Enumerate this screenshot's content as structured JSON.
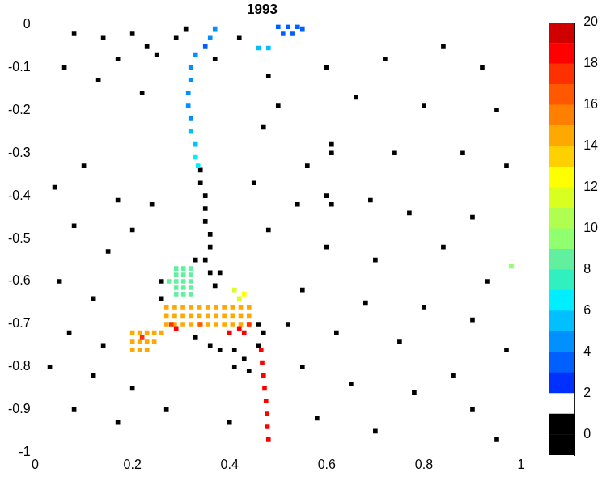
{
  "chart_data": {
    "type": "heatmap",
    "title": "1993",
    "xlim": [
      0,
      1
    ],
    "xticks": [
      0,
      0.2,
      0.4,
      0.6,
      0.8,
      1
    ],
    "ylim": [
      -1,
      0
    ],
    "yticks": [
      0,
      -0.1,
      -0.2,
      -0.3,
      -0.4,
      -0.5,
      -0.6,
      -0.7,
      -0.8,
      -0.9,
      -1
    ],
    "grid": false,
    "colorbar": {
      "range": [
        -1,
        20
      ],
      "ticks": [
        0,
        2,
        4,
        6,
        8,
        10,
        12,
        14,
        16,
        18,
        20
      ],
      "levels": [
        -1,
        0,
        1,
        2,
        3,
        4,
        5,
        6,
        7,
        8,
        9,
        10,
        11,
        12,
        13,
        14,
        15,
        16,
        17,
        18,
        19,
        20
      ],
      "colors": [
        "#000000",
        "#000000",
        "#ffffff",
        "#0030ff",
        "#0060ff",
        "#0090ff",
        "#00c0ff",
        "#00eeff",
        "#30f0c0",
        "#60f0a0",
        "#90ff70",
        "#b0ff50",
        "#d8ff20",
        "#ffff00",
        "#ffd000",
        "#ffa800",
        "#ff8000",
        "#ff5800",
        "#ff3000",
        "#ff0000",
        "#d00000"
      ]
    },
    "cells": [
      [
        0.08,
        -0.02,
        0
      ],
      [
        0.14,
        -0.03,
        0
      ],
      [
        0.2,
        -0.02,
        0
      ],
      [
        0.23,
        -0.05,
        0
      ],
      [
        0.29,
        -0.03,
        0
      ],
      [
        0.31,
        -0.01,
        0
      ],
      [
        0.25,
        -0.07,
        0
      ],
      [
        0.17,
        -0.08,
        0
      ],
      [
        0.42,
        -0.03,
        0
      ],
      [
        0.06,
        -0.1,
        0
      ],
      [
        0.13,
        -0.13,
        0
      ],
      [
        0.22,
        -0.16,
        0
      ],
      [
        0.37,
        -0.08,
        0
      ],
      [
        0.48,
        -0.12,
        0
      ],
      [
        0.5,
        -0.19,
        0
      ],
      [
        0.47,
        -0.24,
        0
      ],
      [
        0.6,
        -0.1,
        0
      ],
      [
        0.72,
        -0.08,
        0
      ],
      [
        0.84,
        -0.05,
        0
      ],
      [
        0.92,
        -0.1,
        0
      ],
      [
        0.66,
        -0.17,
        0
      ],
      [
        0.8,
        -0.19,
        0
      ],
      [
        0.95,
        -0.2,
        0
      ],
      [
        0.61,
        -0.28,
        0
      ],
      [
        0.61,
        -0.3,
        0
      ],
      [
        0.56,
        -0.33,
        0
      ],
      [
        0.74,
        -0.3,
        0
      ],
      [
        0.88,
        -0.3,
        0
      ],
      [
        0.97,
        -0.33,
        0
      ],
      [
        0.1,
        -0.33,
        0
      ],
      [
        0.04,
        -0.38,
        0
      ],
      [
        0.17,
        -0.41,
        0
      ],
      [
        0.24,
        -0.42,
        0
      ],
      [
        0.45,
        -0.37,
        0
      ],
      [
        0.54,
        -0.42,
        0
      ],
      [
        0.69,
        -0.41,
        0
      ],
      [
        0.77,
        -0.44,
        0
      ],
      [
        0.9,
        -0.45,
        0
      ],
      [
        0.08,
        -0.47,
        0
      ],
      [
        0.15,
        -0.53,
        0
      ],
      [
        0.2,
        -0.48,
        0
      ],
      [
        0.48,
        -0.48,
        0
      ],
      [
        0.6,
        -0.52,
        0
      ],
      [
        0.7,
        -0.55,
        0
      ],
      [
        0.84,
        -0.52,
        0
      ],
      [
        0.93,
        -0.6,
        0
      ],
      [
        0.05,
        -0.6,
        0
      ],
      [
        0.12,
        -0.64,
        0
      ],
      [
        0.55,
        -0.62,
        0
      ],
      [
        0.68,
        -0.65,
        0
      ],
      [
        0.8,
        -0.66,
        0
      ],
      [
        0.9,
        -0.69,
        0
      ],
      [
        0.07,
        -0.72,
        0
      ],
      [
        0.14,
        -0.75,
        0
      ],
      [
        0.52,
        -0.7,
        0
      ],
      [
        0.62,
        -0.72,
        0
      ],
      [
        0.75,
        -0.74,
        0
      ],
      [
        0.97,
        -0.76,
        0
      ],
      [
        0.03,
        -0.8,
        0
      ],
      [
        0.12,
        -0.82,
        0
      ],
      [
        0.2,
        -0.85,
        0
      ],
      [
        0.55,
        -0.8,
        0
      ],
      [
        0.65,
        -0.84,
        0
      ],
      [
        0.78,
        -0.86,
        0
      ],
      [
        0.86,
        -0.82,
        0
      ],
      [
        0.08,
        -0.9,
        0
      ],
      [
        0.17,
        -0.93,
        0
      ],
      [
        0.27,
        -0.9,
        0
      ],
      [
        0.58,
        -0.92,
        0
      ],
      [
        0.7,
        -0.95,
        0
      ],
      [
        0.9,
        -0.9,
        0
      ],
      [
        0.95,
        -0.97,
        0
      ],
      [
        0.4,
        -0.93,
        0
      ],
      [
        0.6,
        -0.4,
        0
      ],
      [
        0.61,
        -0.42,
        0
      ],
      [
        0.34,
        -0.34,
        0
      ],
      [
        0.34,
        -0.37,
        0
      ],
      [
        0.35,
        -0.4,
        0
      ],
      [
        0.35,
        -0.43,
        0
      ],
      [
        0.35,
        -0.46,
        0
      ],
      [
        0.36,
        -0.49,
        0
      ],
      [
        0.36,
        -0.52,
        0
      ],
      [
        0.35,
        -0.55,
        0
      ],
      [
        0.33,
        -0.55,
        0
      ],
      [
        0.36,
        -0.58,
        0
      ],
      [
        0.38,
        -0.58,
        0
      ],
      [
        0.37,
        -0.61,
        0
      ],
      [
        0.26,
        -0.6,
        0
      ],
      [
        0.26,
        -0.64,
        0
      ],
      [
        0.38,
        -0.76,
        0
      ],
      [
        0.41,
        -0.76,
        0
      ],
      [
        0.43,
        -0.78,
        0
      ],
      [
        0.41,
        -0.8,
        0
      ],
      [
        0.44,
        -0.81,
        0
      ],
      [
        0.46,
        -0.75,
        0
      ],
      [
        0.36,
        -0.75,
        0
      ],
      [
        0.33,
        -0.73,
        0
      ],
      [
        0.46,
        -0.7,
        0
      ],
      [
        0.47,
        -0.72,
        0
      ],
      [
        0.37,
        -0.01,
        4
      ],
      [
        0.36,
        -0.03,
        4
      ],
      [
        0.35,
        -0.05,
        3
      ],
      [
        0.33,
        -0.07,
        4
      ],
      [
        0.32,
        -0.1,
        4
      ],
      [
        0.32,
        -0.13,
        4
      ],
      [
        0.315,
        -0.16,
        4
      ],
      [
        0.315,
        -0.19,
        4
      ],
      [
        0.32,
        -0.22,
        4
      ],
      [
        0.32,
        -0.25,
        5
      ],
      [
        0.33,
        -0.28,
        5
      ],
      [
        0.33,
        -0.31,
        6
      ],
      [
        0.335,
        -0.33,
        6
      ],
      [
        0.5,
        -0.005,
        3
      ],
      [
        0.52,
        -0.005,
        3
      ],
      [
        0.54,
        -0.005,
        3
      ],
      [
        0.51,
        -0.02,
        3
      ],
      [
        0.53,
        -0.02,
        3
      ],
      [
        0.55,
        -0.01,
        3
      ],
      [
        0.46,
        -0.055,
        5
      ],
      [
        0.48,
        -0.055,
        5
      ],
      [
        0.29,
        -0.57,
        8
      ],
      [
        0.305,
        -0.57,
        8
      ],
      [
        0.32,
        -0.57,
        8
      ],
      [
        0.29,
        -0.585,
        8
      ],
      [
        0.305,
        -0.585,
        8
      ],
      [
        0.32,
        -0.585,
        8
      ],
      [
        0.29,
        -0.6,
        8
      ],
      [
        0.305,
        -0.6,
        8
      ],
      [
        0.32,
        -0.6,
        8
      ],
      [
        0.29,
        -0.615,
        8
      ],
      [
        0.305,
        -0.615,
        8
      ],
      [
        0.32,
        -0.615,
        8
      ],
      [
        0.29,
        -0.63,
        8
      ],
      [
        0.305,
        -0.63,
        8
      ],
      [
        0.32,
        -0.63,
        8
      ],
      [
        0.275,
        -0.6,
        8
      ],
      [
        0.41,
        -0.62,
        11
      ],
      [
        0.42,
        -0.64,
        11
      ],
      [
        0.43,
        -0.63,
        12
      ],
      [
        0.27,
        -0.66,
        14
      ],
      [
        0.287,
        -0.66,
        14
      ],
      [
        0.304,
        -0.66,
        14
      ],
      [
        0.321,
        -0.66,
        14
      ],
      [
        0.338,
        -0.66,
        14
      ],
      [
        0.355,
        -0.66,
        14
      ],
      [
        0.372,
        -0.66,
        14
      ],
      [
        0.389,
        -0.66,
        14
      ],
      [
        0.406,
        -0.66,
        14
      ],
      [
        0.423,
        -0.66,
        14
      ],
      [
        0.44,
        -0.66,
        14
      ],
      [
        0.27,
        -0.68,
        14
      ],
      [
        0.287,
        -0.68,
        14
      ],
      [
        0.304,
        -0.68,
        14
      ],
      [
        0.321,
        -0.68,
        14
      ],
      [
        0.338,
        -0.68,
        14
      ],
      [
        0.355,
        -0.68,
        14
      ],
      [
        0.372,
        -0.68,
        14
      ],
      [
        0.389,
        -0.68,
        14
      ],
      [
        0.406,
        -0.68,
        14
      ],
      [
        0.423,
        -0.68,
        14
      ],
      [
        0.44,
        -0.68,
        14
      ],
      [
        0.27,
        -0.7,
        14
      ],
      [
        0.287,
        -0.7,
        14
      ],
      [
        0.304,
        -0.7,
        14
      ],
      [
        0.321,
        -0.7,
        14
      ],
      [
        0.338,
        -0.7,
        14
      ],
      [
        0.355,
        -0.7,
        14
      ],
      [
        0.372,
        -0.7,
        14
      ],
      [
        0.389,
        -0.7,
        14
      ],
      [
        0.406,
        -0.7,
        14
      ],
      [
        0.423,
        -0.7,
        14
      ],
      [
        0.44,
        -0.7,
        14
      ],
      [
        0.2,
        -0.72,
        14
      ],
      [
        0.215,
        -0.72,
        14
      ],
      [
        0.23,
        -0.72,
        14
      ],
      [
        0.245,
        -0.72,
        14
      ],
      [
        0.26,
        -0.72,
        14
      ],
      [
        0.2,
        -0.74,
        14
      ],
      [
        0.215,
        -0.74,
        14
      ],
      [
        0.23,
        -0.74,
        14
      ],
      [
        0.245,
        -0.74,
        14
      ],
      [
        0.2,
        -0.76,
        14
      ],
      [
        0.215,
        -0.76,
        14
      ],
      [
        0.23,
        -0.76,
        14
      ],
      [
        0.28,
        -0.7,
        17
      ],
      [
        0.29,
        -0.71,
        18
      ],
      [
        0.42,
        -0.71,
        18
      ],
      [
        0.43,
        -0.72,
        18
      ],
      [
        0.44,
        -0.7,
        17
      ],
      [
        0.4,
        -0.72,
        18
      ],
      [
        0.34,
        -0.7,
        16
      ],
      [
        0.22,
        -0.73,
        17
      ],
      [
        0.465,
        -0.76,
        18
      ],
      [
        0.467,
        -0.79,
        18
      ],
      [
        0.47,
        -0.82,
        18
      ],
      [
        0.472,
        -0.85,
        18
      ],
      [
        0.475,
        -0.88,
        18
      ],
      [
        0.477,
        -0.91,
        18
      ],
      [
        0.478,
        -0.94,
        18
      ],
      [
        0.48,
        -0.97,
        18
      ],
      [
        0.98,
        -0.565,
        9
      ]
    ]
  }
}
